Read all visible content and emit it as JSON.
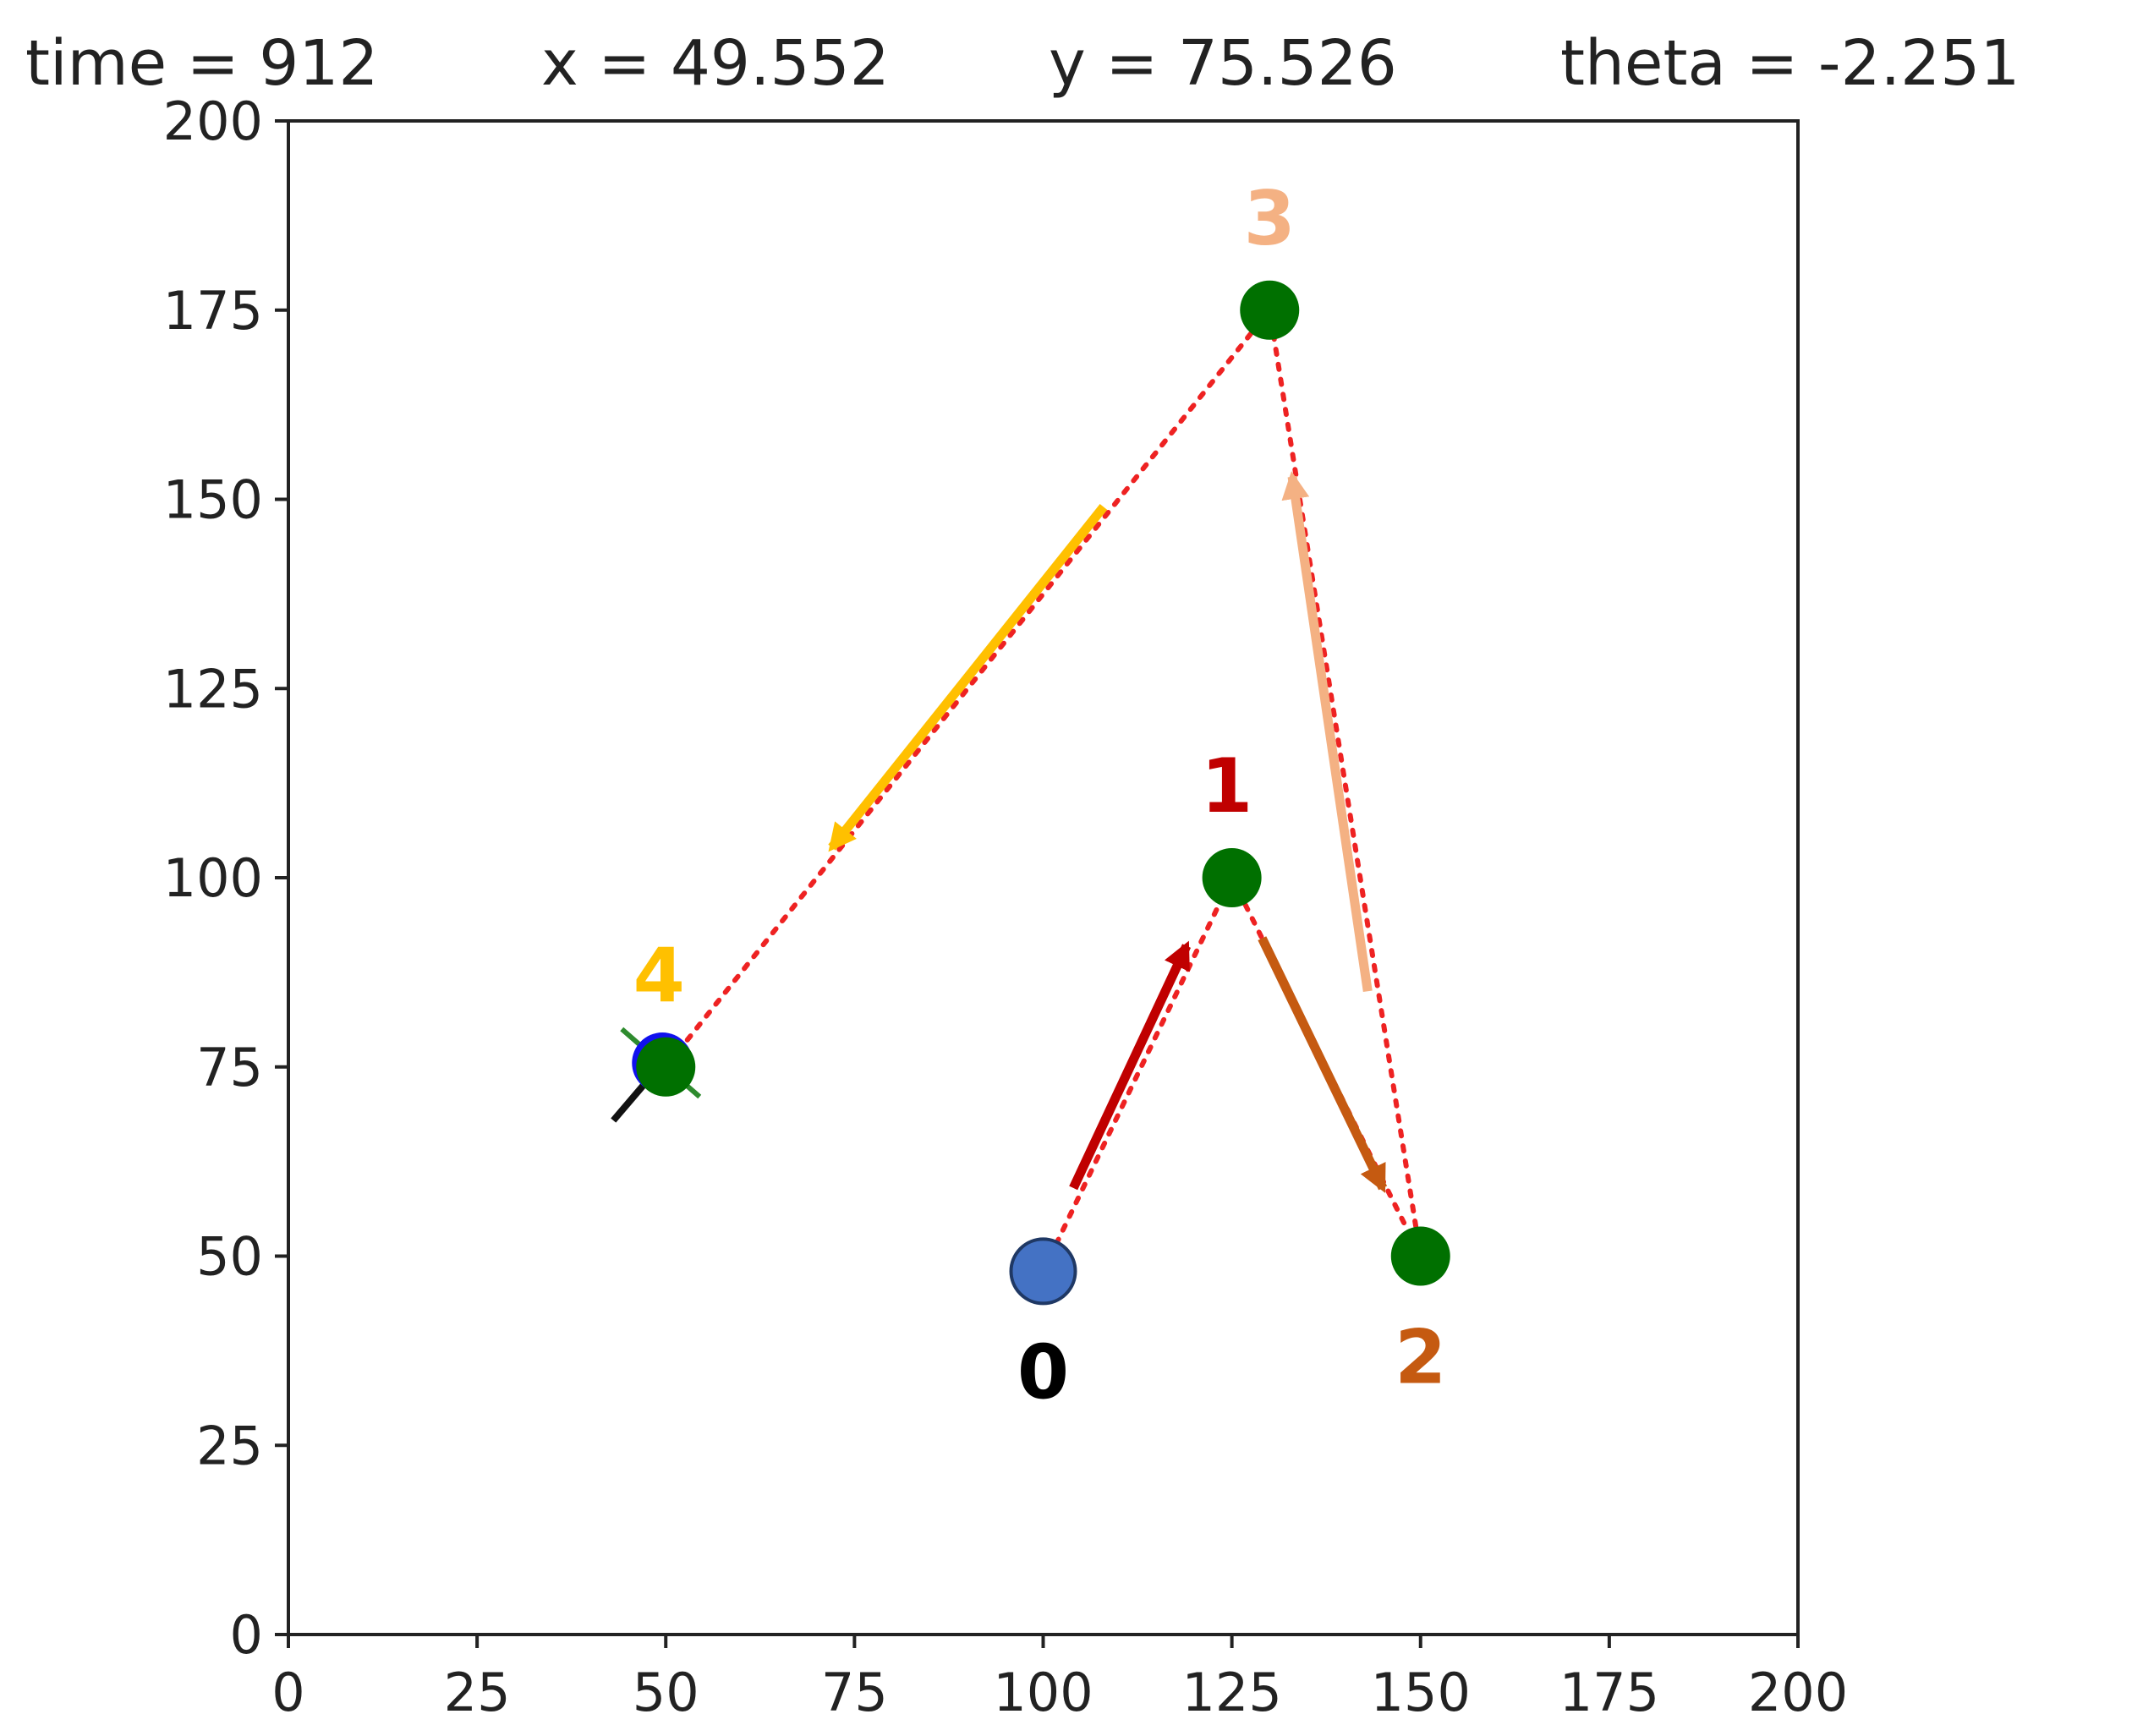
{
  "header": {
    "time": "time = 912",
    "x": "x = 49.552",
    "y": "y = 75.526",
    "theta": "theta = -2.251"
  },
  "chart_data": {
    "type": "scatter",
    "xlim": [
      0,
      200
    ],
    "ylim": [
      0,
      200
    ],
    "xticks": [
      0,
      25,
      50,
      75,
      100,
      125,
      150,
      175,
      200
    ],
    "yticks": [
      0,
      25,
      50,
      75,
      100,
      125,
      150,
      175,
      200
    ],
    "grid": false,
    "robot": {
      "x": 49.552,
      "y": 75.526,
      "theta": -2.251,
      "color": "#1010ee"
    },
    "start": {
      "x": 100,
      "y": 48,
      "color": "#4472c4"
    },
    "waypoints": [
      {
        "x": 125,
        "y": 100
      },
      {
        "x": 150,
        "y": 50
      },
      {
        "x": 130,
        "y": 175
      },
      {
        "x": 50,
        "y": 75
      }
    ],
    "waypoint_color": "#007000",
    "path_color": "#ee2222",
    "labels": [
      {
        "text": "0",
        "x": 100,
        "y": 48,
        "color": "#000000",
        "pos": "below"
      },
      {
        "text": "1",
        "x": 125,
        "y": 100,
        "color": "#c00000",
        "pos": "above"
      },
      {
        "text": "2",
        "x": 150,
        "y": 50,
        "color": "#c55a11",
        "pos": "below"
      },
      {
        "text": "3",
        "x": 130,
        "y": 175,
        "color": "#f4b183",
        "pos": "above"
      },
      {
        "text": "4",
        "x": 50,
        "y": 75,
        "color": "#ffc000",
        "pos": "above"
      }
    ],
    "arrows": [
      {
        "from": [
          104,
          59
        ],
        "to": [
          119,
          91
        ],
        "color": "#c00000"
      },
      {
        "from": [
          129,
          92
        ],
        "to": [
          145,
          59
        ],
        "color": "#c55a11"
      },
      {
        "from": [
          143,
          85
        ],
        "to": [
          133,
          153
        ],
        "color": "#f4b183"
      },
      {
        "from": [
          108,
          149
        ],
        "to": [
          72,
          104
        ],
        "color": "#ffc000"
      }
    ]
  }
}
